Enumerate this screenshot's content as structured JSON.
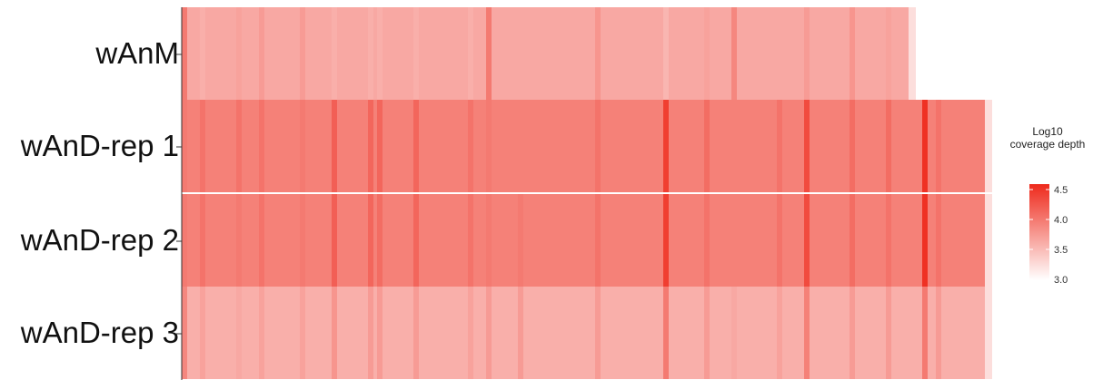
{
  "chart_data": {
    "type": "heatmap",
    "rows": [
      "wAnM",
      "wAnD-rep 1",
      "wAnD-rep 2",
      "wAnD-rep 3"
    ],
    "row_ends": [
      0.8,
      0.884,
      0.884,
      0.884
    ],
    "legend": {
      "title_line1": "Log10",
      "title_line2": "coverage depth",
      "ticks": [
        "4.5",
        "4.0",
        "3.5",
        "3.0"
      ],
      "min": 3.0,
      "max": 4.6,
      "colors": [
        "#ffffff",
        "#ee2a1c"
      ]
    },
    "base_values": [
      3.65,
      3.95,
      3.95,
      3.6
    ],
    "bands": [
      {
        "x": 0.0,
        "row_values": [
          4.0,
          4.0,
          4.0,
          3.9
        ]
      },
      {
        "x": 0.02,
        "row_values": [
          3.6,
          4.05,
          4.05,
          3.7
        ]
      },
      {
        "x": 0.06,
        "row_values": [
          3.7,
          4.05,
          4.0,
          3.65
        ]
      },
      {
        "x": 0.085,
        "row_values": [
          3.75,
          4.05,
          4.05,
          3.7
        ]
      },
      {
        "x": 0.13,
        "row_values": [
          3.75,
          4.0,
          4.0,
          3.7
        ]
      },
      {
        "x": 0.165,
        "row_values": [
          3.6,
          4.2,
          4.2,
          3.8
        ]
      },
      {
        "x": 0.205,
        "row_values": [
          3.6,
          4.15,
          4.15,
          3.75
        ]
      },
      {
        "x": 0.215,
        "row_values": [
          3.6,
          4.15,
          4.1,
          3.75
        ]
      },
      {
        "x": 0.255,
        "row_values": [
          3.6,
          4.15,
          4.15,
          3.75
        ]
      },
      {
        "x": 0.315,
        "row_values": [
          3.6,
          4.05,
          4.05,
          3.7
        ]
      },
      {
        "x": 0.335,
        "row_values": [
          4.0,
          4.0,
          4.0,
          3.75
        ]
      },
      {
        "x": 0.37,
        "row_values": [
          3.65,
          3.95,
          4.0,
          3.75
        ]
      },
      {
        "x": 0.455,
        "row_values": [
          3.8,
          4.05,
          4.05,
          3.75
        ]
      },
      {
        "x": 0.53,
        "row_values": [
          3.55,
          4.45,
          4.45,
          4.0
        ]
      },
      {
        "x": 0.575,
        "row_values": [
          3.7,
          4.1,
          4.05,
          3.75
        ]
      },
      {
        "x": 0.605,
        "row_values": [
          3.9,
          3.95,
          3.95,
          3.65
        ]
      },
      {
        "x": 0.655,
        "row_values": [
          3.65,
          4.05,
          4.05,
          3.7
        ]
      },
      {
        "x": 0.685,
        "row_values": [
          3.75,
          4.35,
          4.35,
          3.95
        ]
      },
      {
        "x": 0.735,
        "row_values": [
          3.8,
          4.1,
          4.1,
          3.75
        ]
      },
      {
        "x": 0.775,
        "row_values": [
          3.7,
          4.1,
          4.05,
          3.75
        ]
      },
      {
        "x": 0.815,
        "row_values": [
          3.6,
          4.55,
          4.55,
          4.0
        ]
      },
      {
        "x": 0.83,
        "row_values": [
          3.6,
          4.05,
          4.05,
          3.75
        ]
      }
    ]
  }
}
